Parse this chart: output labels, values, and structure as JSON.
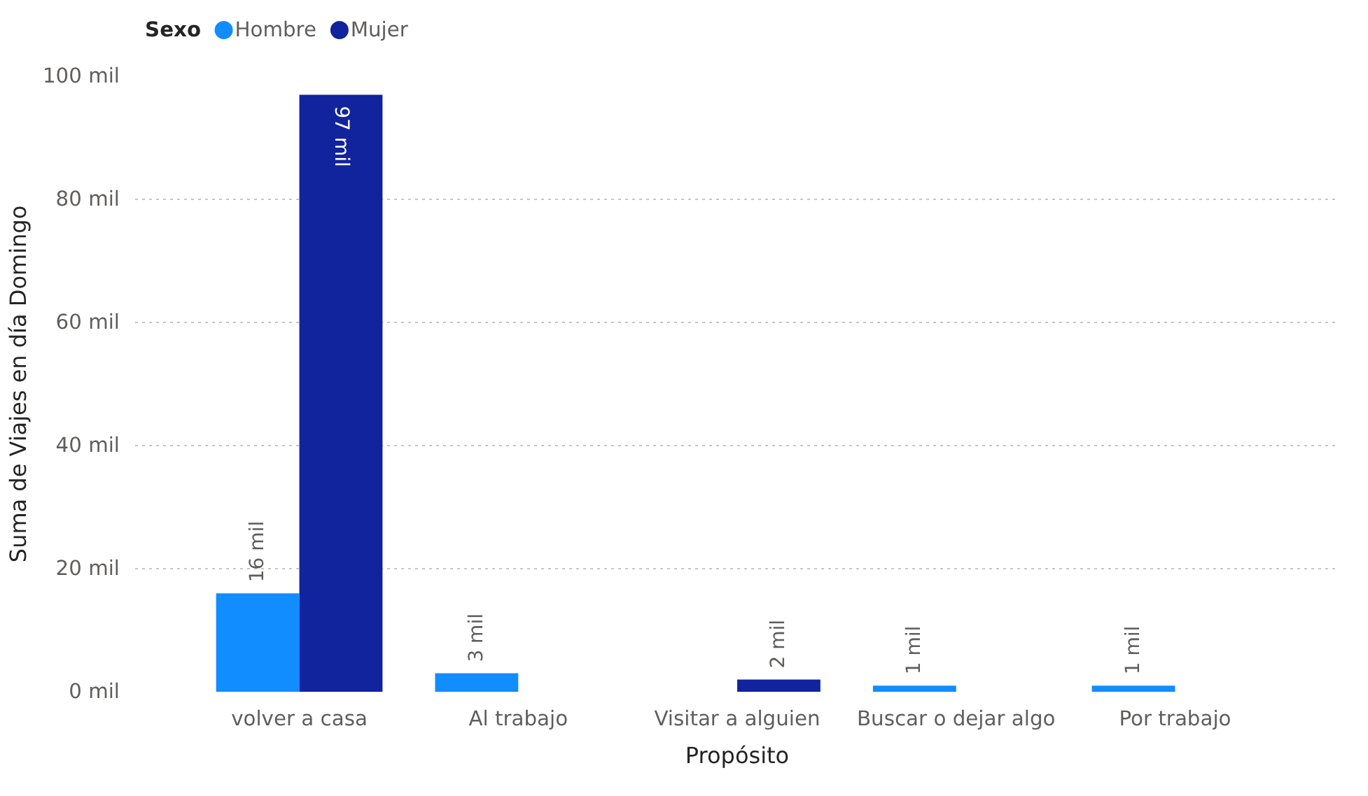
{
  "chart_data": {
    "type": "bar",
    "legend_title": "Sexo",
    "xlabel": "Propósito",
    "ylabel": "Suma de Viajes en día Domingo",
    "categories": [
      "volver a casa",
      "Al trabajo",
      "Visitar a alguien",
      "Buscar o dejar algo",
      "Por trabajo"
    ],
    "series": [
      {
        "name": "Hombre",
        "color": "#118dff",
        "values": [
          16,
          3,
          null,
          1,
          1
        ],
        "value_labels": [
          "16 mil",
          "3 mil",
          null,
          "1 mil",
          "1 mil"
        ]
      },
      {
        "name": "Mujer",
        "color": "#12239e",
        "values": [
          97,
          null,
          2,
          null,
          null
        ],
        "value_labels": [
          "97 mil",
          null,
          "2 mil",
          null,
          null
        ]
      }
    ],
    "ylim": [
      0,
      100
    ],
    "yticks": [
      {
        "value": 0,
        "label": "0 mil"
      },
      {
        "value": 20,
        "label": "20 mil"
      },
      {
        "value": 40,
        "label": "40 mil"
      },
      {
        "value": 60,
        "label": "60 mil"
      },
      {
        "value": 80,
        "label": "80 mil"
      },
      {
        "value": 100,
        "label": "100 mil"
      }
    ],
    "grid": "y",
    "legend": "top left"
  }
}
